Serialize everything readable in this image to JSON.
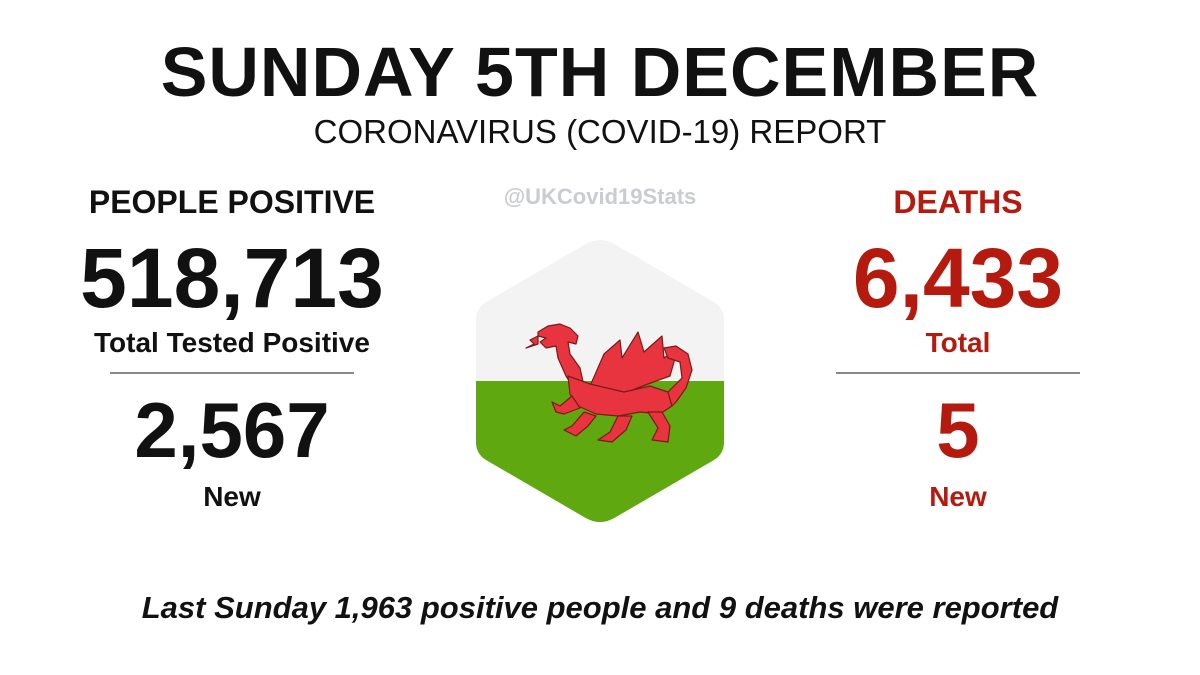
{
  "header": {
    "title": "SUNDAY 5TH DECEMBER",
    "subtitle": "CORONAVIRUS (COVID-19) REPORT"
  },
  "handle": "@UKCovid19Stats",
  "positive": {
    "heading": "PEOPLE POSITIVE",
    "total": "518,713",
    "total_label": "Total Tested Positive",
    "new": "2,567",
    "new_label": "New"
  },
  "deaths": {
    "heading": "DEATHS",
    "total": "6,433",
    "total_label": "Total",
    "new": "5",
    "new_label": "New"
  },
  "footer": "Last Sunday 1,963 positive people and 9 deaths were reported",
  "flag": {
    "icon": "welsh-flag-icon",
    "top_color": "#f3f3f3",
    "bottom_color": "#5fa80f",
    "dragon_color": "#e8343e"
  },
  "colors": {
    "deaths_accent": "#b51a0f",
    "text": "#111111",
    "handle": "#c9ccd1"
  }
}
